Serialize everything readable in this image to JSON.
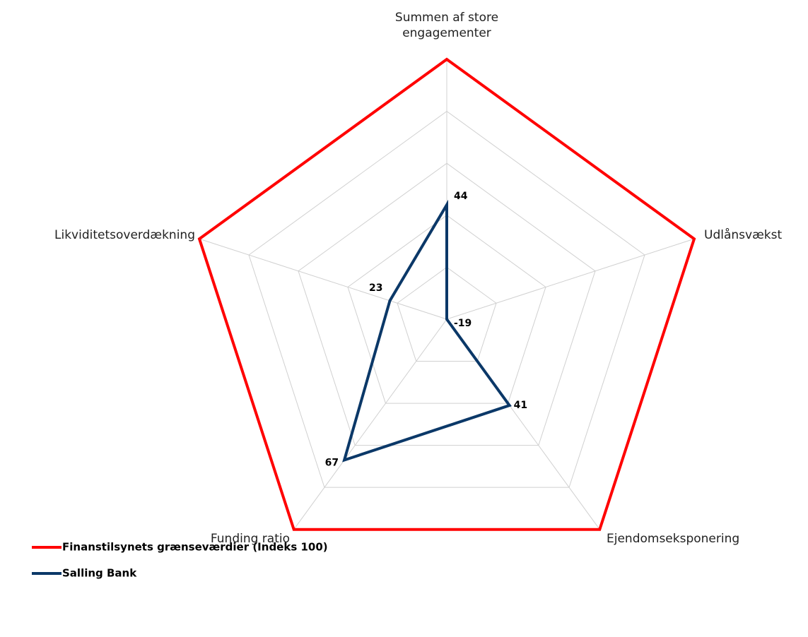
{
  "chart_data": {
    "type": "radar",
    "categories": [
      "Summen af store engagementer",
      "Udlånsvækst",
      "Ejendomseksponering",
      "Funding ratio",
      "Likviditetsoverdækning"
    ],
    "rlim": [
      0,
      100
    ],
    "rticks": [
      0,
      20,
      40,
      60,
      80,
      100
    ],
    "grid": true,
    "series": [
      {
        "name": "Finanstilsynets grænseværdier (Indeks 100)",
        "color": "#ff0000",
        "values": [
          100,
          100,
          100,
          100,
          100
        ]
      },
      {
        "name": "Salling Bank",
        "color": "#0b3868",
        "values": [
          44,
          -19,
          41,
          67,
          23
        ],
        "data_labels": true
      }
    ],
    "legend": "bottom-left"
  }
}
